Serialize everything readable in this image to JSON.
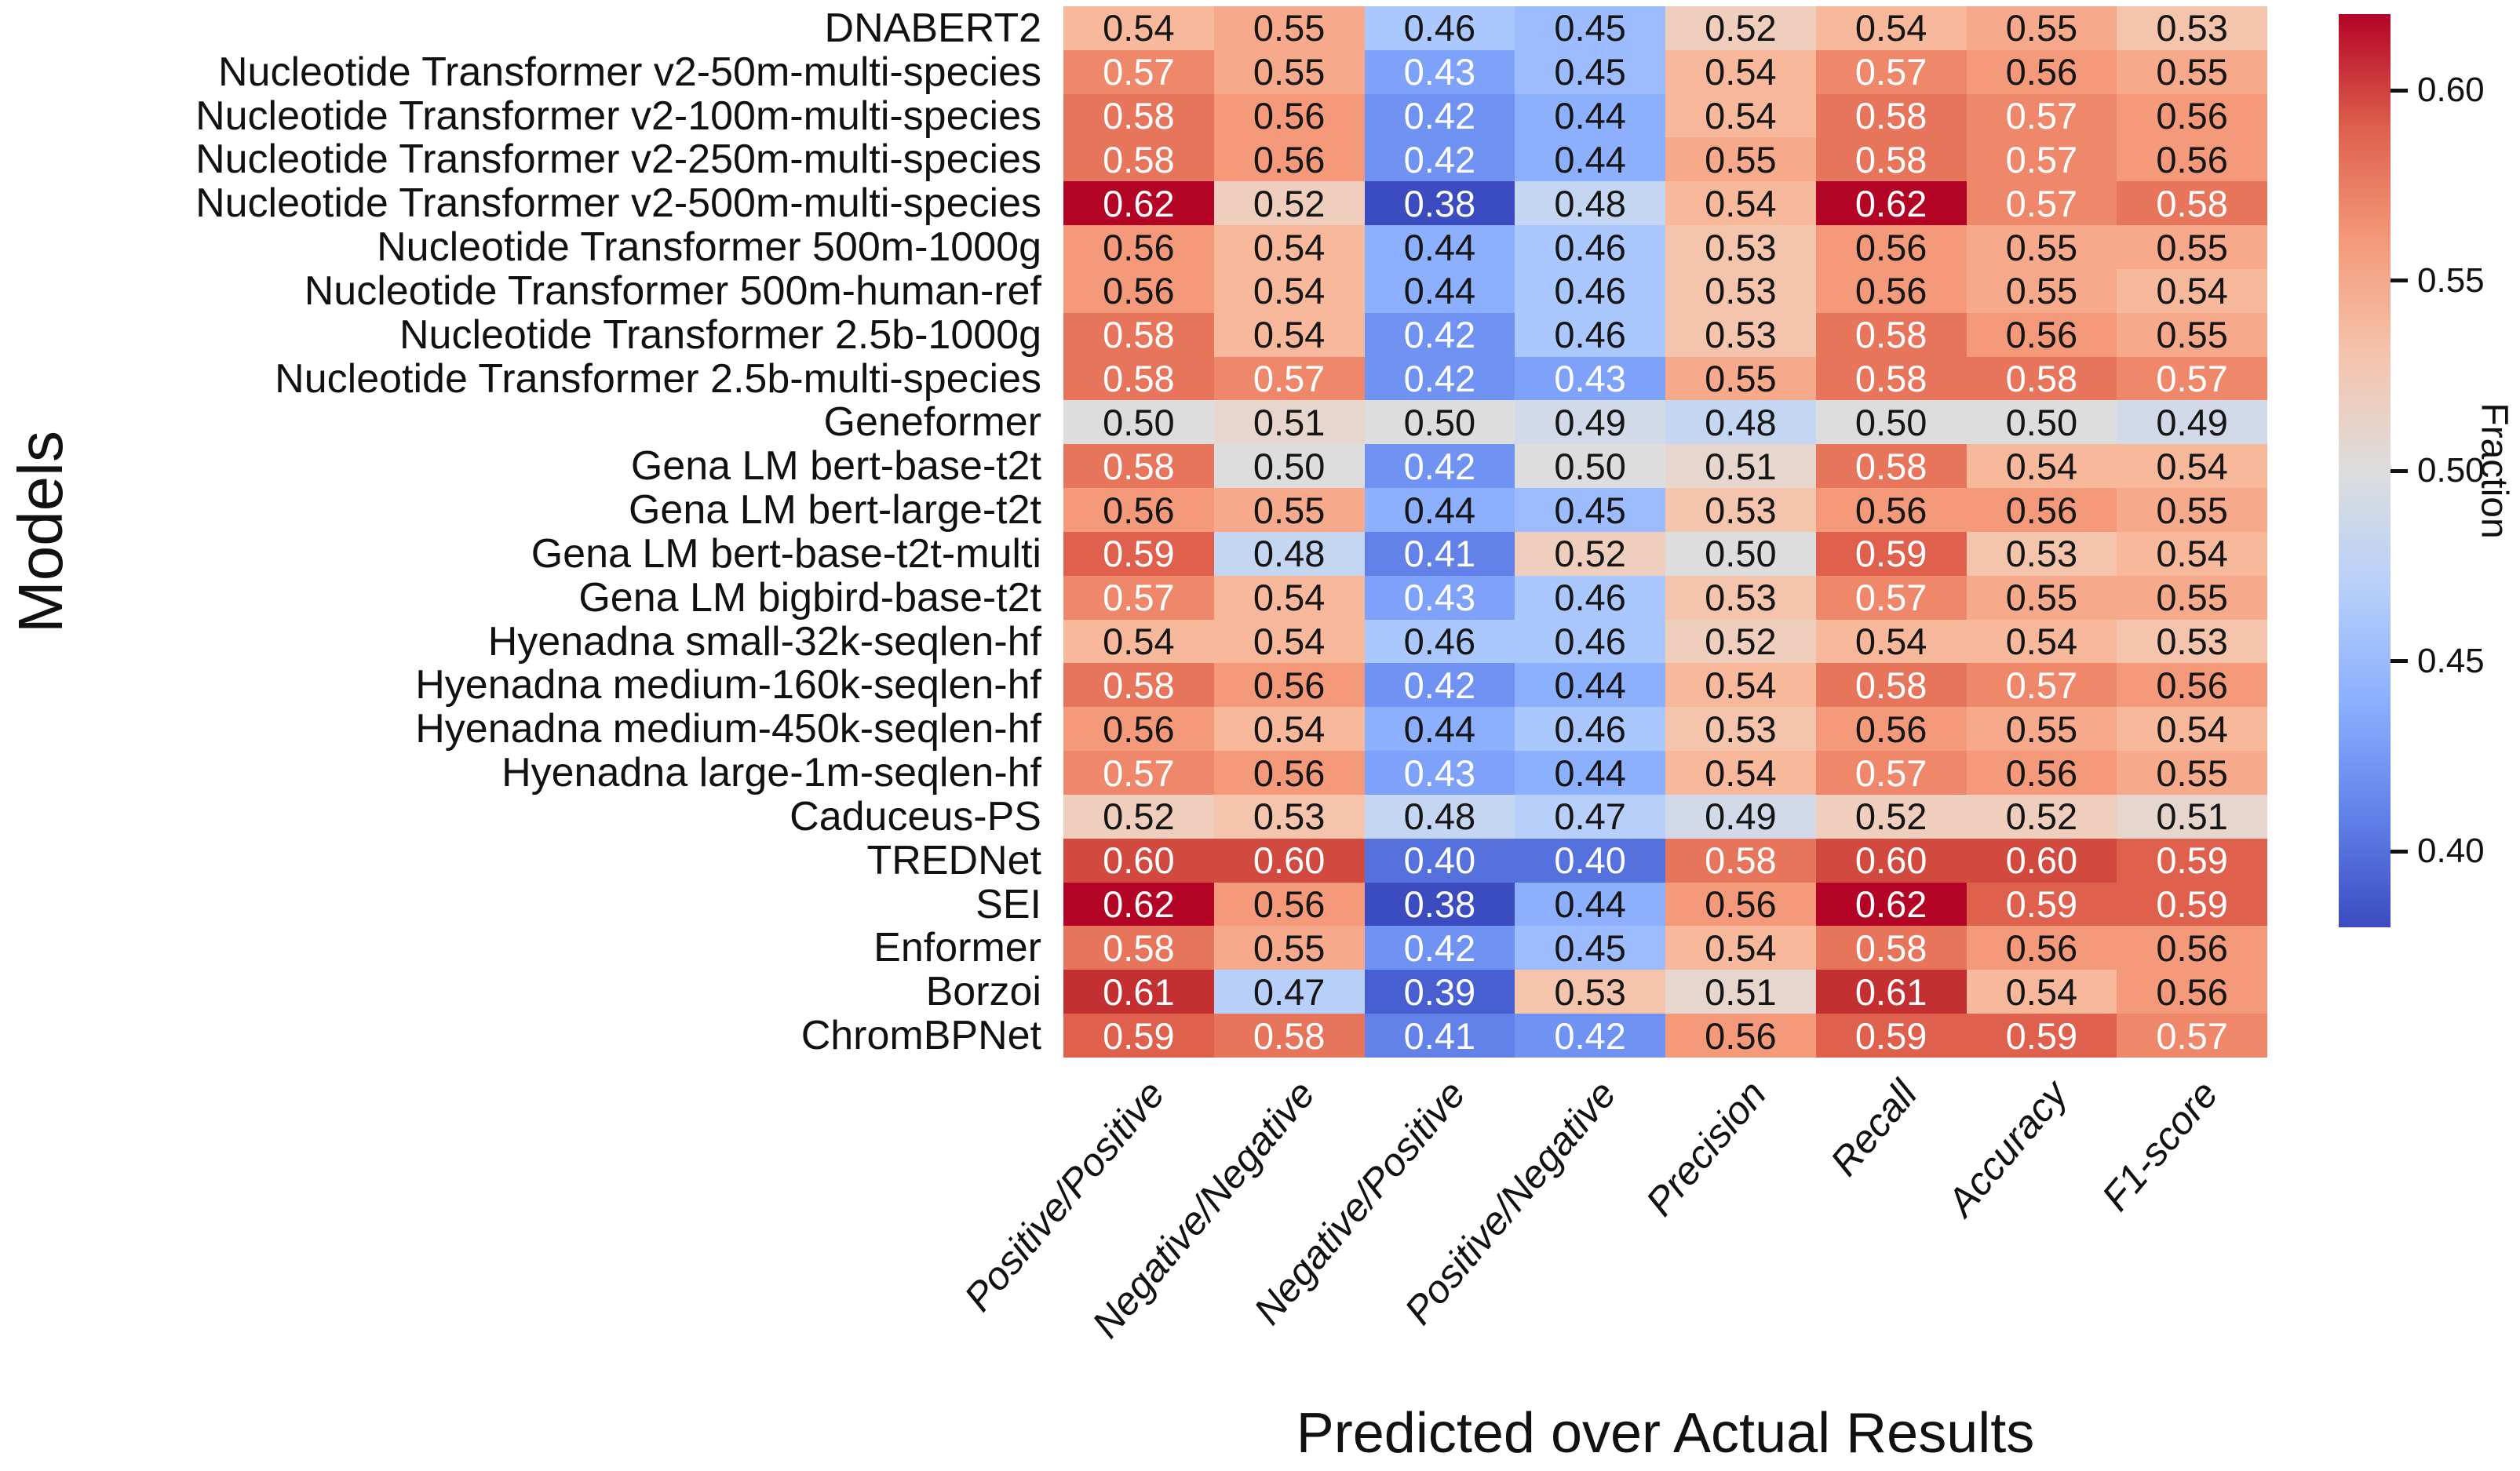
{
  "chart_data": {
    "type": "heatmap",
    "title": "",
    "xlabel": "Predicted over Actual Results",
    "ylabel": "Models",
    "columns": [
      "Positive/Positive",
      "Negative/Negative",
      "Negative/Positive",
      "Positive/Negative",
      "Precision",
      "Recall",
      "Accuracy",
      "F1-score"
    ],
    "rows": [
      "DNABERT2",
      "Nucleotide Transformer v2-50m-multi-species",
      "Nucleotide Transformer v2-100m-multi-species",
      "Nucleotide Transformer v2-250m-multi-species",
      "Nucleotide Transformer v2-500m-multi-species",
      "Nucleotide Transformer 500m-1000g",
      "Nucleotide Transformer 500m-human-ref",
      "Nucleotide Transformer 2.5b-1000g",
      "Nucleotide Transformer 2.5b-multi-species",
      "Geneformer",
      "Gena LM bert-base-t2t",
      "Gena LM bert-large-t2t",
      "Gena LM bert-base-t2t-multi",
      "Gena LM bigbird-base-t2t",
      "Hyenadna small-32k-seqlen-hf",
      "Hyenadna medium-160k-seqlen-hf",
      "Hyenadna medium-450k-seqlen-hf",
      "Hyenadna large-1m-seqlen-hf",
      "Caduceus-PS",
      "TREDNet",
      "SEI",
      "Enformer",
      "Borzoi",
      "ChromBPNet"
    ],
    "values": [
      [
        0.54,
        0.55,
        0.46,
        0.45,
        0.52,
        0.54,
        0.55,
        0.53
      ],
      [
        0.57,
        0.55,
        0.43,
        0.45,
        0.54,
        0.57,
        0.56,
        0.55
      ],
      [
        0.58,
        0.56,
        0.42,
        0.44,
        0.54,
        0.58,
        0.57,
        0.56
      ],
      [
        0.58,
        0.56,
        0.42,
        0.44,
        0.55,
        0.58,
        0.57,
        0.56
      ],
      [
        0.62,
        0.52,
        0.38,
        0.48,
        0.54,
        0.62,
        0.57,
        0.58
      ],
      [
        0.56,
        0.54,
        0.44,
        0.46,
        0.53,
        0.56,
        0.55,
        0.55
      ],
      [
        0.56,
        0.54,
        0.44,
        0.46,
        0.53,
        0.56,
        0.55,
        0.54
      ],
      [
        0.58,
        0.54,
        0.42,
        0.46,
        0.53,
        0.58,
        0.56,
        0.55
      ],
      [
        0.58,
        0.57,
        0.42,
        0.43,
        0.55,
        0.58,
        0.58,
        0.57
      ],
      [
        0.5,
        0.51,
        0.5,
        0.49,
        0.48,
        0.5,
        0.5,
        0.49
      ],
      [
        0.58,
        0.5,
        0.42,
        0.5,
        0.51,
        0.58,
        0.54,
        0.54
      ],
      [
        0.56,
        0.55,
        0.44,
        0.45,
        0.53,
        0.56,
        0.56,
        0.55
      ],
      [
        0.59,
        0.48,
        0.41,
        0.52,
        0.5,
        0.59,
        0.53,
        0.54
      ],
      [
        0.57,
        0.54,
        0.43,
        0.46,
        0.53,
        0.57,
        0.55,
        0.55
      ],
      [
        0.54,
        0.54,
        0.46,
        0.46,
        0.52,
        0.54,
        0.54,
        0.53
      ],
      [
        0.58,
        0.56,
        0.42,
        0.44,
        0.54,
        0.58,
        0.57,
        0.56
      ],
      [
        0.56,
        0.54,
        0.44,
        0.46,
        0.53,
        0.56,
        0.55,
        0.54
      ],
      [
        0.57,
        0.56,
        0.43,
        0.44,
        0.54,
        0.57,
        0.56,
        0.55
      ],
      [
        0.52,
        0.53,
        0.48,
        0.47,
        0.49,
        0.52,
        0.52,
        0.51
      ],
      [
        0.6,
        0.6,
        0.4,
        0.4,
        0.58,
        0.6,
        0.6,
        0.59
      ],
      [
        0.62,
        0.56,
        0.38,
        0.44,
        0.56,
        0.62,
        0.59,
        0.59
      ],
      [
        0.58,
        0.55,
        0.42,
        0.45,
        0.54,
        0.58,
        0.56,
        0.56
      ],
      [
        0.61,
        0.47,
        0.39,
        0.53,
        0.51,
        0.61,
        0.54,
        0.56
      ],
      [
        0.59,
        0.58,
        0.41,
        0.42,
        0.56,
        0.59,
        0.59,
        0.57
      ]
    ],
    "colorbar": {
      "label": "Fraction",
      "ticks": [
        0.4,
        0.45,
        0.5,
        0.55,
        0.6
      ],
      "vmin": 0.38,
      "vmax": 0.62,
      "colormap": "coolwarm"
    },
    "colors": {
      "cmap_low": "#3B4CC0",
      "cmap_mid": "#DDDDDD",
      "cmap_high": "#B40426"
    },
    "layout": {
      "grid_on": false,
      "legend_position": "colorbar-right",
      "x_tick_rotation_deg": 50
    }
  }
}
